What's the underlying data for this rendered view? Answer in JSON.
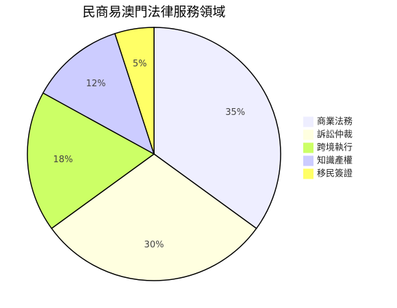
{
  "chart_data": {
    "type": "pie",
    "title": "民商易澳門法律服務領域",
    "categories": [
      "商業法務",
      "訴訟仲裁",
      "跨境執行",
      "知識產權",
      "移民簽證"
    ],
    "values": [
      35,
      30,
      18,
      12,
      5
    ],
    "value_labels": [
      "35%",
      "30%",
      "18%",
      "12%",
      "5%"
    ],
    "colors": [
      "#eeeeff",
      "#ffffe0",
      "#ccff66",
      "#ccccff",
      "#ffff66"
    ],
    "legend": "right"
  }
}
